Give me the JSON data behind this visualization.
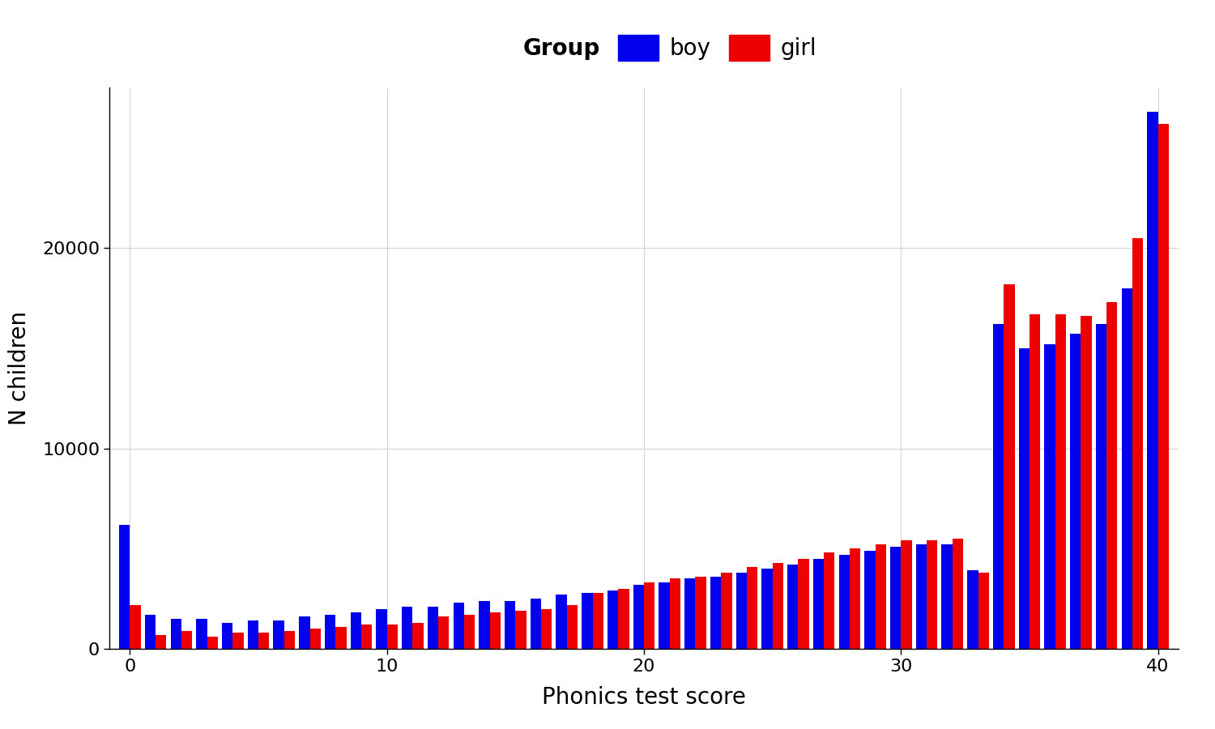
{
  "boy": [
    6200,
    1700,
    1500,
    1500,
    1300,
    1400,
    1400,
    1600,
    1700,
    1800,
    2000,
    2100,
    2100,
    2300,
    2400,
    2400,
    2500,
    2700,
    2800,
    2900,
    3200,
    3300,
    3500,
    3600,
    3800,
    4000,
    4200,
    4500,
    4700,
    4900,
    5100,
    5200,
    5200,
    3900,
    16200,
    15000,
    15200,
    15700,
    16200,
    18000,
    26800
  ],
  "girl": [
    2200,
    700,
    900,
    600,
    800,
    800,
    900,
    1000,
    1100,
    1200,
    1200,
    1300,
    1600,
    1700,
    1800,
    1900,
    2000,
    2200,
    2800,
    3000,
    3300,
    3500,
    3600,
    3800,
    4100,
    4300,
    4500,
    4800,
    5000,
    5200,
    5400,
    5400,
    5500,
    3800,
    18200,
    16700,
    16700,
    16600,
    17300,
    20500,
    26200
  ],
  "scores": [
    0,
    1,
    2,
    3,
    4,
    5,
    6,
    7,
    8,
    9,
    10,
    11,
    12,
    13,
    14,
    15,
    16,
    17,
    18,
    19,
    20,
    21,
    22,
    23,
    24,
    25,
    26,
    27,
    28,
    29,
    30,
    31,
    32,
    33,
    34,
    35,
    36,
    37,
    38,
    39,
    40
  ],
  "boy_color": "#0000EE",
  "girl_color": "#EE0000",
  "xlabel": "Phonics test score",
  "ylabel": "N children",
  "ylim": [
    0,
    28000
  ],
  "yticks": [
    0,
    10000,
    20000
  ],
  "xticks": [
    0,
    10,
    20,
    30,
    40
  ],
  "legend_title": "Group",
  "legend_labels": [
    "boy",
    "girl"
  ],
  "bar_width": 0.42,
  "background_color": "#FFFFFF",
  "grid_color": "#D3D3D3",
  "tick_fontsize": 16,
  "label_fontsize": 20,
  "legend_fontsize": 20
}
